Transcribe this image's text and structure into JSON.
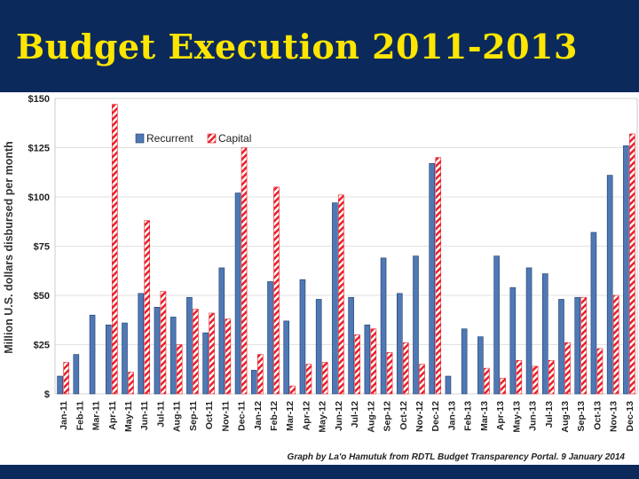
{
  "slide": {
    "title": "Budget Execution 2011-2013"
  },
  "colors": {
    "header_bg": "#0b2a5b",
    "title": "#ffe600",
    "recurrent": "#4f78b5",
    "capital_stripe": "#e8202a"
  },
  "chart_data": {
    "type": "bar",
    "title": "",
    "xlabel": "",
    "ylabel": "Million U.S. dollars disbursed per month",
    "ylim": [
      0,
      150
    ],
    "yticks": [
      0,
      25,
      50,
      75,
      100,
      125,
      150
    ],
    "ytick_labels": [
      "$",
      "$25",
      "$50",
      "$75",
      "$100",
      "$125",
      "$150"
    ],
    "grid": true,
    "legend_position": "top-left",
    "categories": [
      "Jan-11",
      "Feb-11",
      "Mar-11",
      "Apr-11",
      "May-11",
      "Jun-11",
      "Jul-11",
      "Aug-11",
      "Sep-11",
      "Oct-11",
      "Nov-11",
      "Dec-11",
      "Jan-12",
      "Feb-12",
      "Mar-12",
      "Apr-12",
      "May-12",
      "Jun-12",
      "Jul-12",
      "Aug-12",
      "Sep-12",
      "Oct-12",
      "Nov-12",
      "Dec-12",
      "Jan-13",
      "Feb-13",
      "Mar-13",
      "Apr-13",
      "May-13",
      "Jun-13",
      "Jul-13",
      "Aug-13",
      "Sep-13",
      "Oct-13",
      "Nov-13",
      "Dec-13"
    ],
    "series": [
      {
        "name": "Recurrent",
        "values": [
          9,
          20,
          40,
          35,
          36,
          51,
          44,
          39,
          49,
          31,
          64,
          102,
          12,
          57,
          37,
          58,
          48,
          97,
          49,
          35,
          69,
          51,
          70,
          117,
          9,
          33,
          29,
          70,
          54,
          64,
          61,
          48,
          49,
          82,
          111,
          126
        ]
      },
      {
        "name": "Capital",
        "values": [
          16,
          0,
          0,
          147,
          11,
          88,
          52,
          25,
          43,
          41,
          38,
          125,
          20,
          105,
          4,
          15,
          16,
          101,
          30,
          33,
          21,
          26,
          15,
          120,
          0,
          0,
          13,
          8,
          17,
          14,
          17,
          26,
          49,
          23,
          50,
          132
        ]
      }
    ],
    "annotation": "Graph by La'o Hamutuk from RDTL Budget Transparency Portal. 9 January 2014"
  }
}
